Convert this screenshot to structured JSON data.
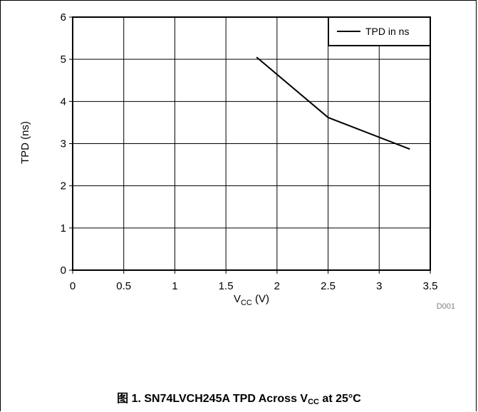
{
  "chart_data": {
    "type": "line",
    "xlabel": {
      "main": "V",
      "sub": "CC",
      "tail": " (V)"
    },
    "ylabel": "TPD (ns)",
    "xlim": [
      0,
      3.5
    ],
    "ylim": [
      0,
      6
    ],
    "xticks": [
      "0",
      "0.5",
      "1",
      "1.5",
      "2",
      "2.5",
      "3",
      "3.5"
    ],
    "yticks": [
      "0",
      "1",
      "2",
      "3",
      "4",
      "5",
      "6"
    ],
    "grid": true,
    "legend_position": "top-right",
    "series": [
      {
        "name": "TPD in ns",
        "x": [
          1.8,
          2.5,
          3.3
        ],
        "y": [
          5.05,
          3.62,
          2.87
        ]
      }
    ],
    "annotation": "D001"
  },
  "caption": {
    "prefix": "图 1. SN74LVCH245A TPD Across V",
    "sub": "CC",
    "suffix": " at 25°C"
  },
  "colors": {
    "line": "#000000",
    "grid": "#000000",
    "background": "#ffffff"
  }
}
